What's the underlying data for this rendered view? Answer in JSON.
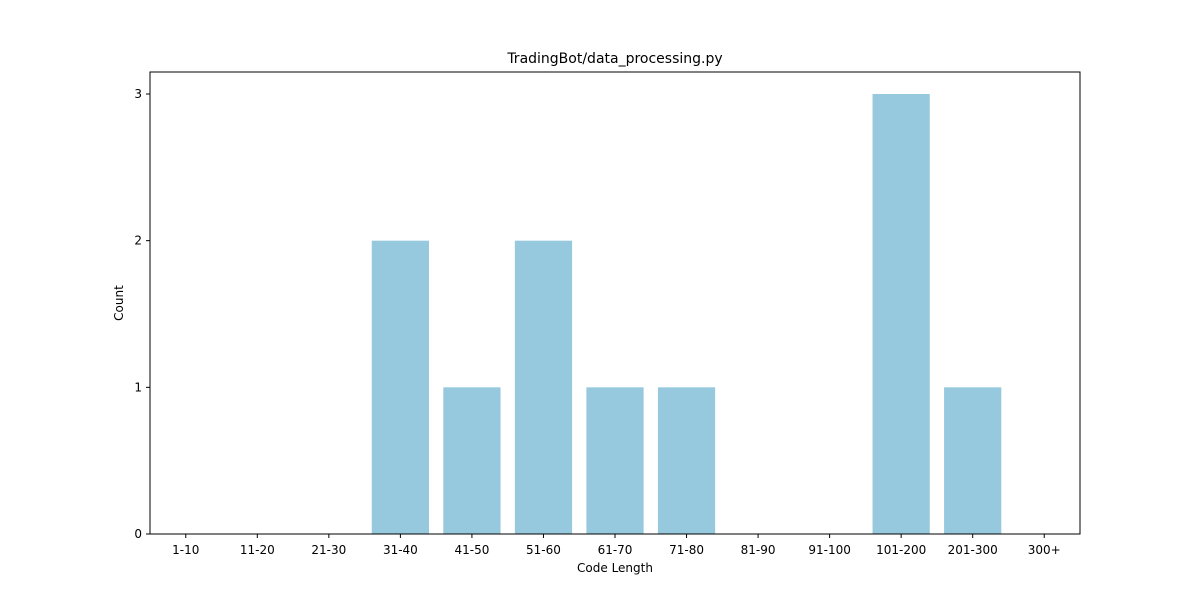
{
  "chart_data": {
    "type": "bar",
    "title": "TradingBot/data_processing.py",
    "xlabel": "Code Length",
    "ylabel": "Count",
    "categories": [
      "1-10",
      "11-20",
      "21-30",
      "31-40",
      "41-50",
      "51-60",
      "61-70",
      "71-80",
      "81-90",
      "91-100",
      "101-200",
      "201-300",
      "300+"
    ],
    "values": [
      0,
      0,
      0,
      2,
      1,
      2,
      1,
      1,
      0,
      0,
      3,
      1,
      0
    ],
    "yticks": [
      0,
      1,
      2,
      3
    ],
    "ylim": [
      0,
      3.15
    ],
    "grid": false,
    "bar_color": "#96c9dd"
  }
}
